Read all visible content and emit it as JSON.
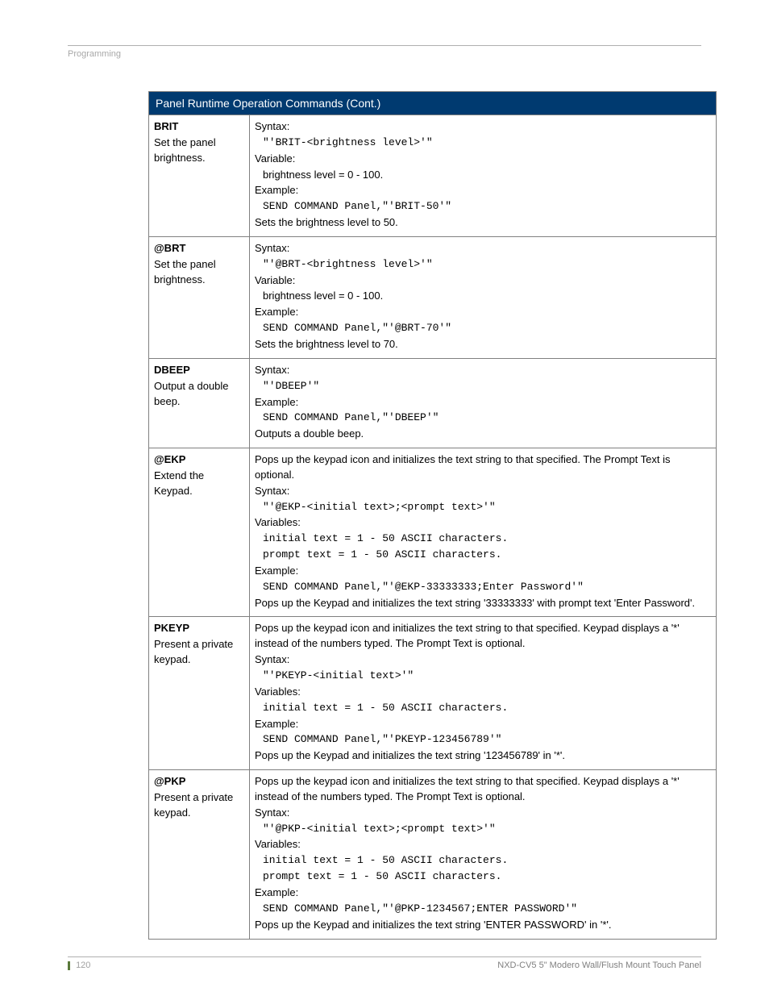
{
  "header": {
    "label": "Programming"
  },
  "table": {
    "title": "Panel Runtime Operation Commands (Cont.)",
    "rows": [
      {
        "cmd": "BRIT",
        "desc": "Set the panel brightness.",
        "body": {
          "l1": "Syntax:",
          "l2": "\"'BRIT-<brightness level>'\"",
          "l3": "Variable:",
          "l4": "brightness level = 0 - 100.",
          "l5": "Example:",
          "l6": "SEND COMMAND Panel,\"'BRIT-50'\"",
          "l7": "Sets the brightness level to 50."
        }
      },
      {
        "cmd": "@BRT",
        "desc": "Set the panel brightness.",
        "body": {
          "l1": "Syntax:",
          "l2": "\"'@BRT-<brightness level>'\"",
          "l3": "Variable:",
          "l4": "brightness level = 0 - 100.",
          "l5": "Example:",
          "l6": "SEND COMMAND Panel,\"'@BRT-70'\"",
          "l7": "Sets the brightness level to 70."
        }
      },
      {
        "cmd": "DBEEP",
        "desc": "Output a double beep.",
        "body": {
          "l1": "Syntax:",
          "l2": "\"'DBEEP'\"",
          "l3": "Example:",
          "l4": "SEND COMMAND Panel,\"'DBEEP'\"",
          "l5": "Outputs a double beep."
        }
      },
      {
        "cmd": "@EKP",
        "desc": "Extend the Keypad.",
        "body": {
          "l0": "Pops up the keypad icon and initializes the text string to that specified. The Prompt Text is optional.",
          "l1": "Syntax:",
          "l2": "\"'@EKP-<initial text>;<prompt text>'\"",
          "l3": "Variables:",
          "l4": "initial text = 1 - 50 ASCII characters.",
          "l5": "prompt text = 1 - 50 ASCII characters.",
          "l6": "Example:",
          "l7": "SEND COMMAND Panel,\"'@EKP-33333333;Enter Password'\"",
          "l8": "Pops up the Keypad and initializes the text string '33333333' with prompt text 'Enter Password'."
        }
      },
      {
        "cmd": "PKEYP",
        "desc": "Present a private keypad.",
        "body": {
          "l0": "Pops up the keypad icon and initializes the text string to that specified. Keypad displays a '*' instead of the numbers typed. The Prompt Text is optional.",
          "l1": "Syntax:",
          "l2": "\"'PKEYP-<initial text>'\"",
          "l3": "Variables:",
          "l4": "initial text = 1 - 50 ASCII characters.",
          "l5": "Example:",
          "l6": "SEND COMMAND Panel,\"'PKEYP-123456789'\"",
          "l7": "Pops up the Keypad and initializes the text string '123456789' in '*'."
        }
      },
      {
        "cmd": "@PKP",
        "desc": "Present a private keypad.",
        "body": {
          "l0": "Pops up the keypad icon and initializes the text string to that specified. Keypad displays a '*' instead of the numbers typed. The Prompt Text is optional.",
          "l1": "Syntax:",
          "l2": "\"'@PKP-<initial text>;<prompt text>'\"",
          "l3": "Variables:",
          "l4": "initial text = 1 - 50 ASCII characters.",
          "l5": "prompt text = 1 - 50 ASCII characters.",
          "l6": "Example:",
          "l7": "SEND COMMAND Panel,\"'@PKP-1234567;ENTER PASSWORD'\"",
          "l8": "Pops up the Keypad and initializes the text string 'ENTER PASSWORD' in '*'."
        }
      }
    ]
  },
  "footer": {
    "page": "120",
    "doc": "NXD-CV5 5\" Modero Wall/Flush Mount Touch Panel"
  }
}
